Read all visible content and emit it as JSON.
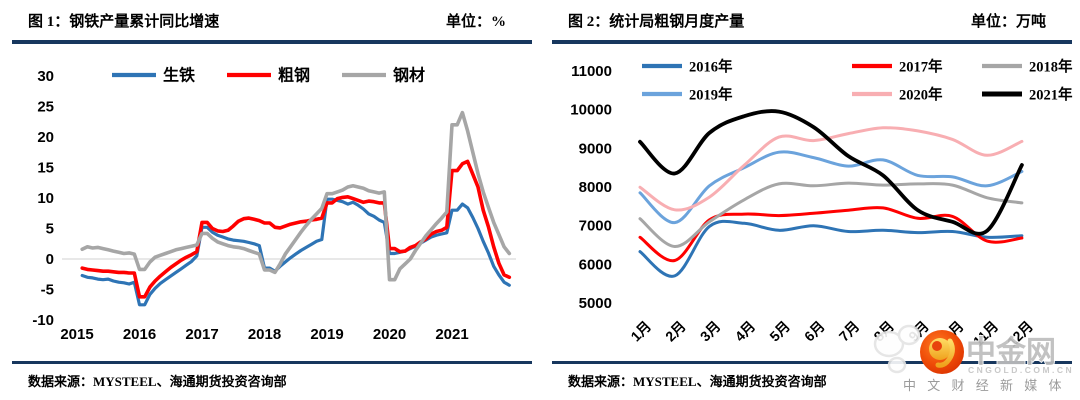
{
  "figure1": {
    "title": "图 1：钢铁产量累计同比增速",
    "unit_label": "单位：%",
    "source": "数据来源：MYSTEEL、海通期货投资咨询部",
    "chart_data": {
      "type": "line",
      "title": "钢铁产量累计同比增速",
      "ylabel": "%",
      "ylim": [
        -10,
        30
      ],
      "y_ticks": [
        "30",
        "25",
        "20",
        "15",
        "10",
        "5",
        "0",
        "-5",
        "-10"
      ],
      "y_tick_values": [
        30,
        25,
        20,
        15,
        10,
        5,
        0,
        -5,
        -10
      ],
      "x_tick_labels": [
        "2015",
        "2016",
        "2017",
        "2018",
        "2019",
        "2020",
        "2021"
      ],
      "x_note": "monthly cumulative YoY, Feb 2015 - Dec 2021",
      "grid": "zero-line-only",
      "legend_position": "top",
      "series": [
        {
          "name": "生铁",
          "color": "#2E74B5",
          "values": [
            -2.7,
            -3.0,
            -3.1,
            -3.3,
            -3.4,
            -3.3,
            -3.6,
            -3.8,
            -3.9,
            -4.1,
            -3.8,
            -7.5,
            -7.5,
            -5.8,
            -4.8,
            -4.0,
            -3.4,
            -2.8,
            -2.2,
            -1.6,
            -1.0,
            -0.4,
            0.5,
            5.2,
            5.2,
            4.4,
            3.9,
            3.6,
            3.3,
            3.1,
            3.0,
            2.9,
            2.7,
            2.5,
            2.2,
            -1.5,
            -1.5,
            -2.0,
            -1.2,
            -0.5,
            0.2,
            0.8,
            1.4,
            1.9,
            2.4,
            2.9,
            3.2,
            9.8,
            9.8,
            9.6,
            9.4,
            9.0,
            9.3,
            8.8,
            8.2,
            7.4,
            7.0,
            6.4,
            6.0,
            0.9,
            0.9,
            1.1,
            1.3,
            1.7,
            2.1,
            2.6,
            3.1,
            3.6,
            3.9,
            4.1,
            4.3,
            8.0,
            8.0,
            9.0,
            8.4,
            6.8,
            5.0,
            2.9,
            1.0,
            -1.2,
            -2.6,
            -3.8,
            -4.3
          ]
        },
        {
          "name": "粗钢",
          "color": "#FF0000",
          "values": [
            -1.5,
            -1.7,
            -1.8,
            -1.9,
            -2.0,
            -2.0,
            -2.1,
            -2.2,
            -2.2,
            -2.3,
            -2.3,
            -6.2,
            -6.2,
            -4.6,
            -3.6,
            -2.8,
            -2.1,
            -1.4,
            -0.8,
            -0.2,
            0.3,
            0.7,
            1.2,
            6.0,
            6.0,
            5.0,
            4.6,
            4.5,
            4.7,
            5.4,
            6.2,
            6.6,
            6.7,
            6.5,
            6.3,
            5.9,
            5.9,
            5.2,
            5.1,
            5.4,
            5.7,
            5.9,
            6.1,
            6.2,
            6.4,
            6.5,
            6.7,
            9.2,
            9.2,
            9.9,
            10.1,
            10.2,
            9.9,
            9.6,
            9.3,
            9.5,
            9.4,
            9.2,
            9.2,
            1.7,
            1.7,
            1.2,
            1.3,
            1.9,
            2.2,
            2.8,
            3.3,
            4.1,
            4.5,
            4.7,
            5.2,
            14.5,
            14.5,
            15.6,
            16.0,
            13.9,
            11.8,
            8.0,
            5.3,
            2.0,
            -0.7,
            -2.6,
            -3.0
          ]
        },
        {
          "name": "钢材",
          "color": "#A6A6A6",
          "values": [
            1.6,
            2.0,
            1.8,
            1.9,
            1.7,
            1.5,
            1.3,
            1.1,
            0.9,
            1.0,
            0.8,
            -1.7,
            -1.7,
            -0.5,
            0.3,
            0.6,
            0.9,
            1.2,
            1.5,
            1.7,
            1.9,
            2.1,
            2.3,
            4.2,
            4.2,
            3.4,
            2.8,
            2.5,
            2.2,
            2.0,
            1.9,
            1.7,
            1.4,
            1.1,
            0.8,
            -1.8,
            -1.8,
            -2.2,
            -0.8,
            0.8,
            2.0,
            3.2,
            4.4,
            5.5,
            6.5,
            7.4,
            8.3,
            10.7,
            10.7,
            11.0,
            11.3,
            11.8,
            12.0,
            11.8,
            11.6,
            11.2,
            11.0,
            10.8,
            11.0,
            -3.4,
            -3.4,
            -1.6,
            -0.8,
            0.0,
            1.4,
            2.6,
            3.8,
            4.8,
            5.8,
            6.7,
            7.7,
            22.0,
            22.0,
            24.0,
            21.0,
            17.5,
            14.0,
            11.0,
            8.5,
            6.0,
            4.0,
            2.0,
            0.9
          ]
        }
      ]
    }
  },
  "figure2": {
    "title": "图 2：统计局粗钢月度产量",
    "unit_label": "单位：万吨",
    "source": "数据来源：MYSTEEL、海通期货投资咨询部",
    "chart_data": {
      "type": "line",
      "title": "统计局粗钢月度产量",
      "ylabel": "万吨",
      "ylim": [
        5000,
        11000
      ],
      "y_ticks": [
        "11000",
        "10000",
        "9000",
        "8000",
        "7000",
        "6000",
        "5000"
      ],
      "y_tick_values": [
        11000,
        10000,
        9000,
        8000,
        7000,
        6000,
        5000
      ],
      "x_tick_labels": [
        "1月",
        "2月",
        "3月",
        "4月",
        "5月",
        "6月",
        "7月",
        "8月",
        "9月",
        "10月",
        "11月",
        "12月"
      ],
      "grid": "none",
      "legend_position": "top",
      "smooth": true,
      "series": [
        {
          "name": "2016年",
          "color": "#2E74B5",
          "values": [
            6330,
            5700,
            6980,
            7060,
            6880,
            7000,
            6850,
            6880,
            6820,
            6850,
            6700,
            6740
          ]
        },
        {
          "name": "2017年",
          "color": "#FF0000",
          "values": [
            6700,
            6100,
            7150,
            7300,
            7260,
            7320,
            7400,
            7460,
            7190,
            7240,
            6600,
            6680
          ]
        },
        {
          "name": "2018年",
          "color": "#A6A6A6",
          "values": [
            7180,
            6460,
            7100,
            7670,
            8080,
            8030,
            8100,
            8050,
            8080,
            8050,
            7720,
            7590
          ]
        },
        {
          "name": "2019年",
          "color": "#6BA3DC",
          "values": [
            7850,
            7080,
            8030,
            8500,
            8900,
            8760,
            8540,
            8700,
            8300,
            8260,
            8030,
            8400
          ]
        },
        {
          "name": "2020年",
          "color": "#F8AEB2",
          "values": [
            7995,
            7410,
            7740,
            8560,
            9290,
            9200,
            9380,
            9530,
            9450,
            9230,
            8820,
            9180
          ]
        },
        {
          "name": "2021年",
          "color": "#000000",
          "values": [
            9170,
            8350,
            9400,
            9830,
            9950,
            9550,
            8800,
            8300,
            7400,
            7100,
            6870,
            8570
          ]
        }
      ]
    }
  },
  "watermark": {
    "logo_text": "中金网",
    "domain_text": "CNGOLD.COM.CN",
    "tagline": "中 文 财 经 新 媒 体"
  }
}
